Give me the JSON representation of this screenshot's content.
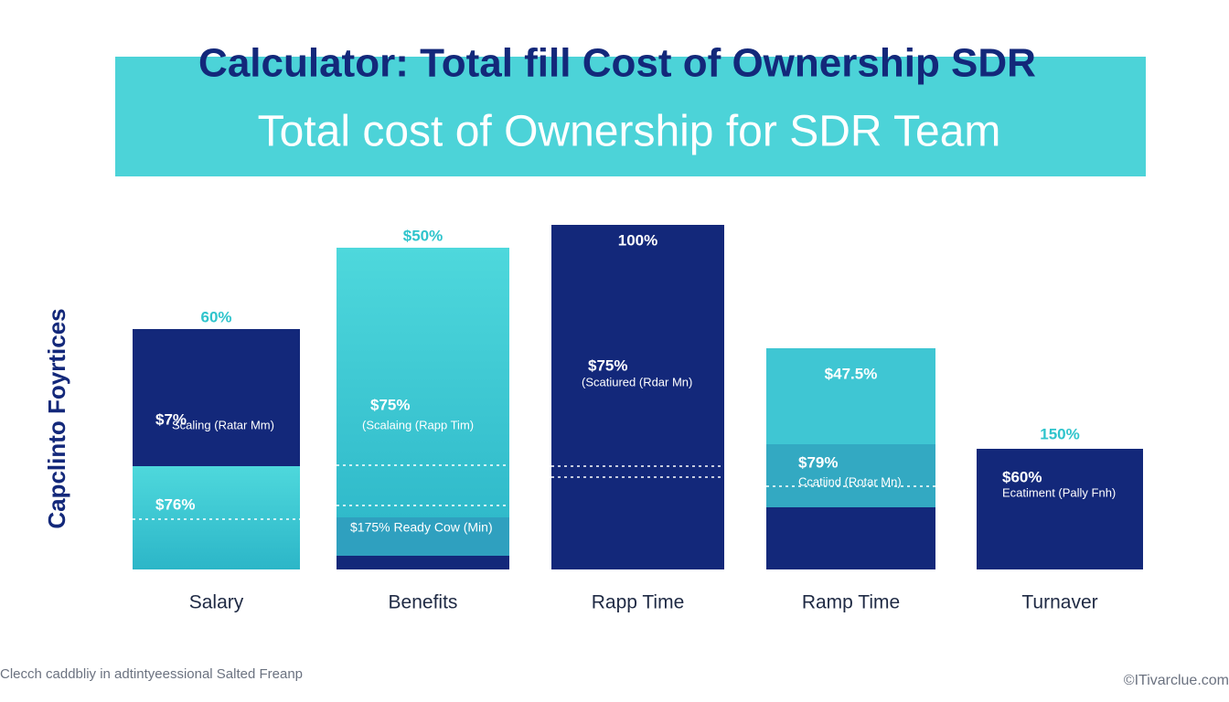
{
  "header": {
    "title": "Calculator: Total fill Cost of Ownership  SDR",
    "subtitle": "Total cost of Ownership for SDR Team"
  },
  "y_axis_label": "Capclinto Foyrtices",
  "columns": [
    {
      "category": "Salary",
      "top_label": "60%",
      "segments": [
        {
          "label": "$7%",
          "sublabel": "Scaling (Ratar Mm)"
        },
        {
          "label": "$76%"
        }
      ]
    },
    {
      "category": "Benefits",
      "top_label": "$50%",
      "segments": [
        {
          "label": "$75%",
          "sublabel": "(Scalaing (Rapp Tim)"
        },
        {
          "label": "$175% Ready Cow (Min)"
        }
      ]
    },
    {
      "category": "Rapp Time",
      "top_label": "100%",
      "segments": [
        {
          "label": "$75%",
          "sublabel": "(Scatiured (Rdar Mn)"
        }
      ]
    },
    {
      "category": "Ramp Time",
      "top_label": "$47.5%",
      "segments": [
        {
          "label": "$79%",
          "sublabel": "Ccatiind (Rotar Mn)"
        }
      ]
    },
    {
      "category": "Turnaver",
      "top_label": "150%",
      "segments": [
        {
          "label": "$60%",
          "sublabel": "Ecatiment (Pally Fnh)"
        }
      ]
    }
  ],
  "footer": {
    "note": "Clecch caddbliy in adtintyeessional Salted Freanp",
    "credit": "©ITivarclue.com"
  }
}
